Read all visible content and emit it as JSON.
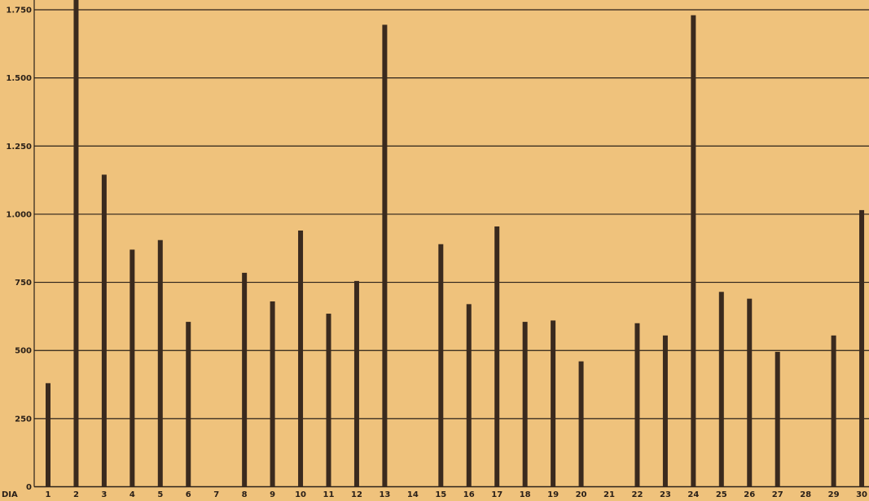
{
  "chart_data": {
    "type": "bar",
    "title": "",
    "xlabel": "",
    "ylabel": "",
    "x_axis_prefix": "DIA",
    "categories": [
      "1",
      "2",
      "3",
      "4",
      "5",
      "6",
      "7",
      "8",
      "9",
      "10",
      "11",
      "12",
      "13",
      "14",
      "15",
      "16",
      "17",
      "18",
      "19",
      "20",
      "21",
      "22",
      "23",
      "24",
      "25",
      "26",
      "27",
      "28",
      "29",
      "30"
    ],
    "values": [
      380,
      1800,
      1145,
      870,
      905,
      605,
      0,
      785,
      680,
      940,
      635,
      755,
      1695,
      0,
      890,
      670,
      955,
      605,
      610,
      460,
      0,
      600,
      555,
      1730,
      715,
      690,
      495,
      0,
      555,
      1015
    ],
    "ylim": [
      0,
      1800
    ],
    "y_ticks": [
      0,
      250,
      500,
      750,
      1000,
      1250,
      1500,
      1750
    ],
    "y_tick_labels": [
      "0",
      "250",
      "500",
      "750",
      "1.000",
      "1.250",
      "1.500",
      "1.750"
    ],
    "grid": true,
    "colors": {
      "background": "#efc27c",
      "bar": "#3a2a1e",
      "grid": "#2a2018"
    }
  }
}
